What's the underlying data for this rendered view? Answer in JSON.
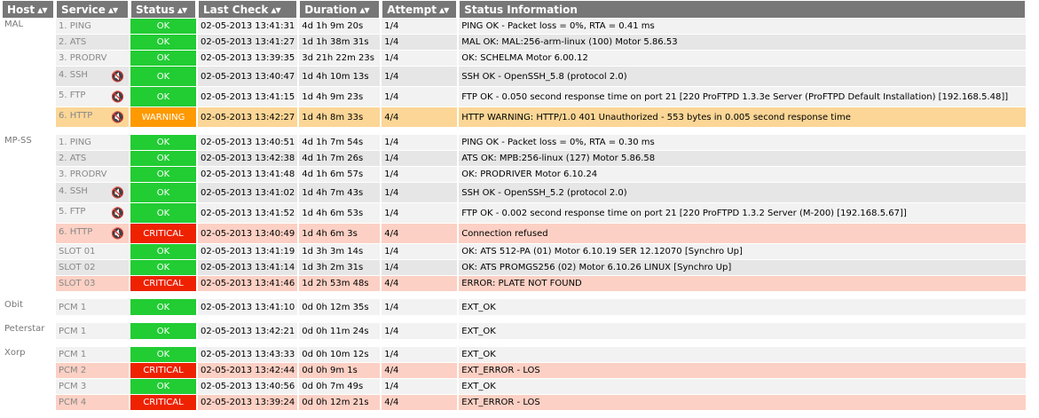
{
  "headers": [
    "Host",
    "Service",
    "Status",
    "Last Check",
    "Duration",
    "Attempt",
    "Status Information"
  ],
  "groups": [
    {
      "host": "MAL",
      "rows": [
        {
          "service": "1. PING",
          "status": "OK",
          "last": "02-05-2013 13:41:31",
          "dur": "4d 1h 9m 20s",
          "att": "1/4",
          "info": "PING OK - Packet loss = 0%, RTA = 0.41 ms",
          "muted": false
        },
        {
          "service": "2. ATS",
          "status": "OK",
          "last": "02-05-2013 13:41:27",
          "dur": "1d 1h 38m 31s",
          "att": "1/4",
          "info": "MAL OK: MAL:256-arm-linux (100) Motor 5.86.53",
          "muted": false
        },
        {
          "service": "3. PRODRV",
          "status": "OK",
          "last": "02-05-2013 13:39:35",
          "dur": "3d 21h 22m 23s",
          "att": "1/4",
          "info": "OK: SCHELMA Motor 6.00.12",
          "muted": false
        },
        {
          "service": "4. SSH",
          "status": "OK",
          "last": "02-05-2013 13:40:47",
          "dur": "1d 4h 10m 13s",
          "att": "1/4",
          "info": "SSH OK - OpenSSH_5.8 (protocol 2.0)",
          "muted": true
        },
        {
          "service": "5. FTP",
          "status": "OK",
          "last": "02-05-2013 13:41:15",
          "dur": "1d 4h 9m 23s",
          "att": "1/4",
          "info": "FTP OK - 0.050 second response time on port 21 [220 ProFTPD 1.3.3e Server (ProFTPD Default Installation) [192.168.5.48]]",
          "muted": true
        },
        {
          "service": "6. HTTP",
          "status": "WARNING",
          "last": "02-05-2013 13:42:27",
          "dur": "1d 4h 8m 33s",
          "att": "4/4",
          "info": "HTTP WARNING: HTTP/1.0 401 Unauthorized - 553 bytes in 0.005 second response time",
          "muted": true
        }
      ]
    },
    {
      "host": "MP-SS",
      "rows": [
        {
          "service": "1. PING",
          "status": "OK",
          "last": "02-05-2013 13:40:51",
          "dur": "4d 1h 7m 54s",
          "att": "1/4",
          "info": "PING OK - Packet loss = 0%, RTA = 0.30 ms",
          "muted": false
        },
        {
          "service": "2. ATS",
          "status": "OK",
          "last": "02-05-2013 13:42:38",
          "dur": "4d 1h 7m 26s",
          "att": "1/4",
          "info": "ATS OK: MPB:256-linux (127) Motor 5.86.58",
          "muted": false
        },
        {
          "service": "3. PRODRV",
          "status": "OK",
          "last": "02-05-2013 13:41:48",
          "dur": "4d 1h 6m 57s",
          "att": "1/4",
          "info": "OK: PRODRIVER Motor 6.10.24",
          "muted": false
        },
        {
          "service": "4. SSH",
          "status": "OK",
          "last": "02-05-2013 13:41:02",
          "dur": "1d 4h 7m 43s",
          "att": "1/4",
          "info": "SSH OK - OpenSSH_5.2 (protocol 2.0)",
          "muted": true
        },
        {
          "service": "5. FTP",
          "status": "OK",
          "last": "02-05-2013 13:41:52",
          "dur": "1d 4h 6m 53s",
          "att": "1/4",
          "info": "FTP OK - 0.002 second response time on port 21 [220 ProFTPD 1.3.2 Server (M-200) [192.168.5.67]]",
          "muted": true
        },
        {
          "service": "6. HTTP",
          "status": "CRITICAL",
          "last": "02-05-2013 13:40:49",
          "dur": "1d 4h 6m 3s",
          "att": "4/4",
          "info": "Connection refused",
          "muted": true
        },
        {
          "service": "SLOT 01",
          "status": "OK",
          "last": "02-05-2013 13:41:19",
          "dur": "1d 3h 3m 14s",
          "att": "1/4",
          "info": "OK: ATS 512-PA (01) Motor 6.10.19 SER 12.12070 [Synchro Up]",
          "muted": false
        },
        {
          "service": "SLOT 02",
          "status": "OK",
          "last": "02-05-2013 13:41:14",
          "dur": "1d 3h 2m 31s",
          "att": "1/4",
          "info": "OK: ATS PROMGS256 (02) Motor 6.10.26 LINUX [Synchro Up]",
          "muted": false
        },
        {
          "service": "SLOT 03",
          "status": "CRITICAL",
          "last": "02-05-2013 13:41:46",
          "dur": "1d 2h 53m 48s",
          "att": "4/4",
          "info": "ERROR: PLATE NOT FOUND",
          "muted": false
        }
      ]
    },
    {
      "host": "Obit",
      "rows": [
        {
          "service": "PCM 1",
          "status": "OK",
          "last": "02-05-2013 13:41:10",
          "dur": "0d 0h 12m 35s",
          "att": "1/4",
          "info": "EXT_OK",
          "muted": false
        }
      ]
    },
    {
      "host": "Peterstar",
      "rows": [
        {
          "service": "PCM 1",
          "status": "OK",
          "last": "02-05-2013 13:42:21",
          "dur": "0d 0h 11m 24s",
          "att": "1/4",
          "info": "EXT_OK",
          "muted": false
        }
      ]
    },
    {
      "host": "Xorp",
      "rows": [
        {
          "service": "PCM 1",
          "status": "OK",
          "last": "02-05-2013 13:43:33",
          "dur": "0d 0h 10m 12s",
          "att": "1/4",
          "info": "EXT_OK",
          "muted": false
        },
        {
          "service": "PCM 2",
          "status": "CRITICAL",
          "last": "02-05-2013 13:42:44",
          "dur": "0d 0h 9m 1s",
          "att": "4/4",
          "info": "EXT_ERROR - LOS",
          "muted": false
        },
        {
          "service": "PCM 3",
          "status": "OK",
          "last": "02-05-2013 13:40:56",
          "dur": "0d 0h 7m 49s",
          "att": "1/4",
          "info": "EXT_OK",
          "muted": false
        },
        {
          "service": "PCM 4",
          "status": "CRITICAL",
          "last": "02-05-2013 13:39:24",
          "dur": "0d 0h 12m 21s",
          "att": "4/4",
          "info": "EXT_ERROR - LOS",
          "muted": false
        }
      ]
    }
  ],
  "colors": {
    "ok": "#22cc33",
    "warning": "#ff9900",
    "critical": "#ee2200",
    "header": "#777777"
  },
  "icons": {
    "sort": "sort-arrows-icon",
    "muted": "notifications-disabled-icon"
  }
}
